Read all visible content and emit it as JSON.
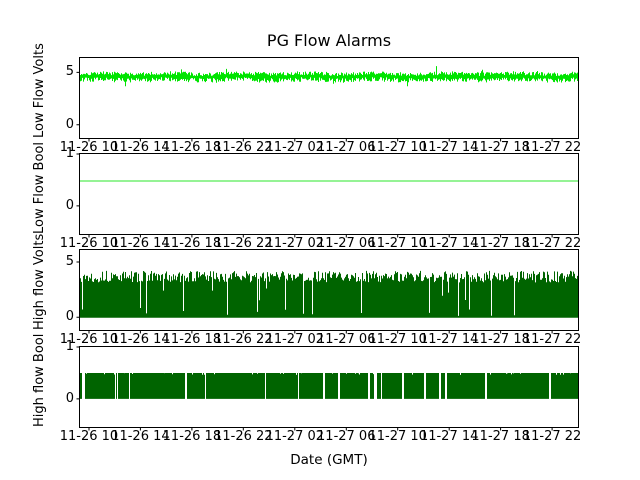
{
  "figure": {
    "title": "PG Flow Alarms",
    "xlabel": "Date (GMT)",
    "background": "#ffffff",
    "axis_color": "#000000"
  },
  "x_axis": {
    "tick_labels": [
      "11-26 10",
      "11-26 14",
      "11-26 18",
      "11-26 22",
      "11-27 02",
      "11-27 06",
      "11-27 10",
      "11-27 14",
      "11-27 18",
      "11-27 22"
    ],
    "first_tick_frac": 0.018,
    "last_tick_frac": 0.948
  },
  "chart_data": [
    {
      "type": "line",
      "ylabel": "Low Flow Volts",
      "color": "#00e400",
      "ylim": [
        -1.26,
        6.37
      ],
      "yticks": [
        5,
        0
      ],
      "seed": 101,
      "series": [
        {
          "name": "Low Flow Volts",
          "kind": "noisy-line",
          "mean": 4.6,
          "noise": 0.3,
          "description": "dense noisy voltage trace oscillating roughly 4.2-5.0 V with spikes to ~5.5 V across the full time range"
        }
      ]
    },
    {
      "type": "line",
      "ylabel": "Low Flow Bool",
      "color": "#72ef72",
      "ylim": [
        -0.54,
        1.0
      ],
      "yticks": [
        1,
        0
      ],
      "seed": 7,
      "series": [
        {
          "name": "Low Flow Bool",
          "kind": "hline",
          "value": 0.48,
          "description": "constant flat line at ~0.5 for the whole time range"
        }
      ]
    },
    {
      "type": "line",
      "ylabel": "High flow Volts",
      "color": "#006400",
      "ylim": [
        -1.16,
        6.09
      ],
      "yticks": [
        5,
        0
      ],
      "seed": 13,
      "series": [
        {
          "name": "High flow Volts",
          "kind": "noisy-bars",
          "top_mean": 3.6,
          "top_var": 1.05,
          "dropout": 0.05,
          "description": "dense dark-green oscillation filling 0 to ~3.5-4 V with occasional brief dropouts toward 0 (thin white gaps)"
        }
      ]
    },
    {
      "type": "line",
      "ylabel": "High flow Bool",
      "color": "#006400",
      "ylim": [
        -0.54,
        1.0
      ],
      "yticks": [
        1,
        0
      ],
      "seed": 99,
      "series": [
        {
          "name": "High flow Bool",
          "kind": "bool-bars",
          "value": 0.5,
          "dropout": 0.05,
          "description": "solid dark-green band from 0 to ~0.5 with occasional brief white dropout gaps"
        }
      ]
    }
  ]
}
